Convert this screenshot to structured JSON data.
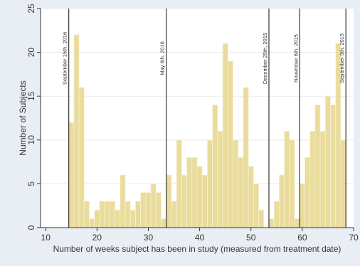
{
  "chart_data": {
    "type": "bar",
    "xlabel": "Number of weeks subject has been in study (measured from treatment date)",
    "ylabel": "Number of Subjects",
    "xlim": [
      9,
      70
    ],
    "ylim": [
      0,
      25
    ],
    "x_ticks": [
      10,
      20,
      30,
      40,
      50,
      60,
      70
    ],
    "y_ticks": [
      0,
      5,
      10,
      15,
      20,
      25
    ],
    "grid": true,
    "colors": {
      "bar_fill": "#e9dc9c",
      "bar_stroke": "#f7f1d2",
      "line": "#333333",
      "plot_bg": "#ffffff",
      "grid": "#eaeaea",
      "background": "#e9eef4",
      "text": "#333333"
    },
    "bin_width": 1,
    "series": [
      {
        "x": [
          15,
          16,
          17,
          18,
          19,
          20,
          21,
          22,
          23,
          24,
          25,
          26,
          27,
          28,
          29,
          30,
          31,
          32,
          33,
          34,
          35,
          36,
          37,
          38,
          39,
          40,
          41,
          42,
          43,
          44,
          45,
          46,
          47,
          48,
          49,
          50,
          51,
          52,
          53,
          54,
          55,
          56,
          57,
          58,
          59,
          60,
          61,
          62,
          63,
          64,
          65,
          66,
          67,
          68,
          69
        ],
        "values": [
          12,
          22,
          16,
          3,
          1,
          2,
          3,
          3,
          3,
          2,
          6,
          3,
          2,
          3,
          4,
          4,
          5,
          4,
          1,
          6,
          3,
          10,
          6,
          8,
          8,
          7,
          6,
          10,
          14,
          11,
          21,
          19,
          10,
          8,
          16,
          7,
          5,
          2,
          0,
          1,
          3,
          6,
          11,
          10,
          1,
          5,
          8,
          11,
          14,
          11,
          15,
          14,
          21,
          10,
          0
        ]
      }
    ],
    "annotations": [
      {
        "label": "September 15th, 2016",
        "x": 14.5
      },
      {
        "label": "May 6th, 2016",
        "x": 33.5
      },
      {
        "label": "December 25th, 2015",
        "x": 53.5
      },
      {
        "label": "November 6th, 2015",
        "x": 59.5
      },
      {
        "label": "September 5th, 2015",
        "x": 68.5
      }
    ]
  }
}
